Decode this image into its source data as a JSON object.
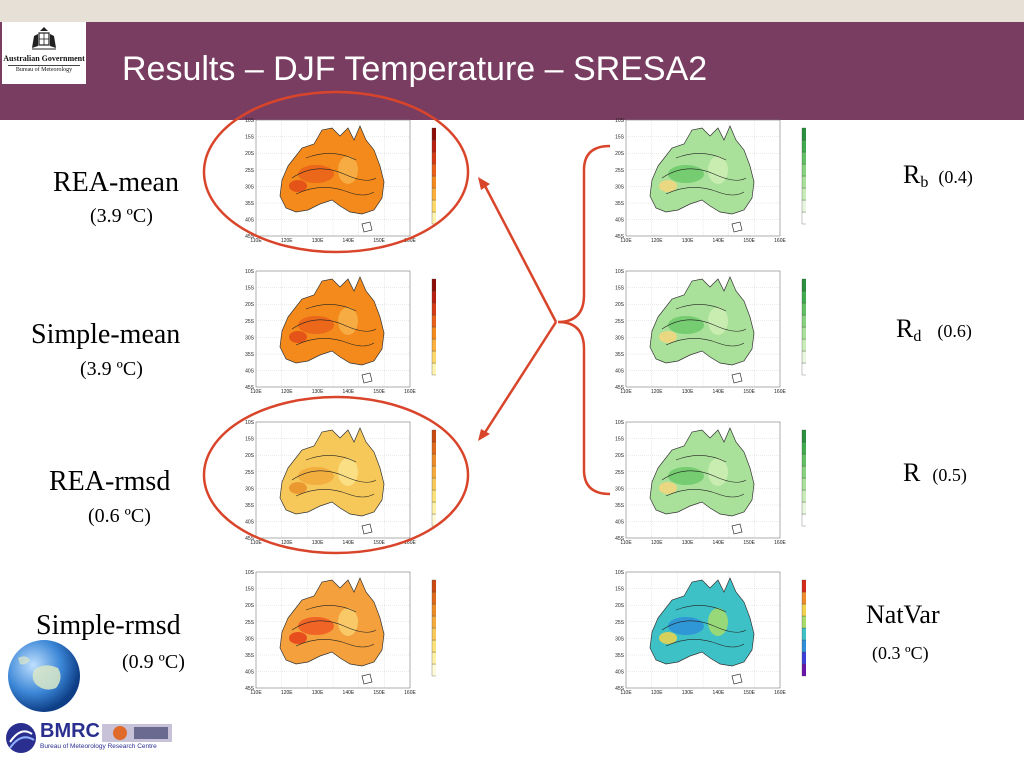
{
  "header": {
    "title": "Results – DJF Temperature – SRESA2",
    "logo": {
      "line1": "Australian Government",
      "line2": "Bureau of Meteorology"
    }
  },
  "left_labels": [
    {
      "name": "REA-mean",
      "value": "(3.9 ºC)"
    },
    {
      "name": "Simple-mean",
      "value": "(3.9 ºC)"
    },
    {
      "name": "REA-rmsd",
      "value": "(0.6 ºC)"
    },
    {
      "name": "Simple-rmsd",
      "value": "(0.9 ºC)"
    }
  ],
  "right_labels": [
    {
      "main": "R",
      "sub": "b",
      "value": "(0.4)"
    },
    {
      "main": "R",
      "sub": "d",
      "value": "(0.6)"
    },
    {
      "main": "R",
      "sub": "",
      "value": "(0.5)"
    },
    {
      "main": "NatVar",
      "sub": "",
      "value": "(0.3 ºC)"
    }
  ],
  "map_axes": {
    "lat_ticks": [
      "10S",
      "15S",
      "20S",
      "25S",
      "30S",
      "35S",
      "40S",
      "45S"
    ],
    "lon_ticks": [
      "110E",
      "120E",
      "130E",
      "140E",
      "150E",
      "160E"
    ]
  },
  "footer": {
    "bmrc": "BMRC",
    "bmrc_full": "Bureau of Meteorology Research Centre"
  },
  "colors": {
    "header_bg": "#7a3d62",
    "highlight": "#d9452a"
  }
}
